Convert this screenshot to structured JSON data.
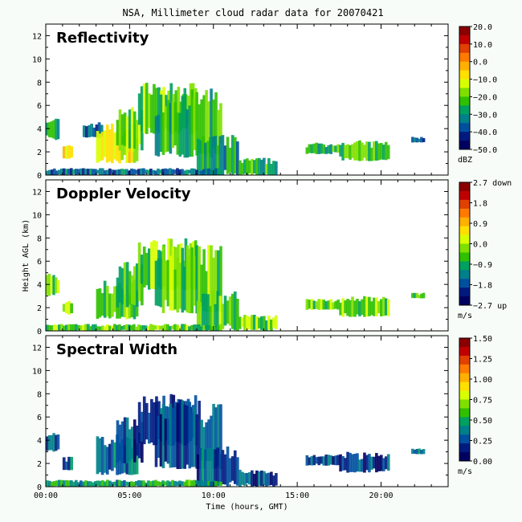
{
  "title": "NSA, Millimeter cloud radar data for 20070421",
  "chart_data": [
    {
      "type": "heatmap",
      "panel_title": "Reflectivity",
      "ylabel": "",
      "ylim": [
        0,
        13
      ],
      "yticks": [
        0,
        2,
        4,
        6,
        8,
        10,
        12
      ],
      "xlim": [
        0,
        24
      ],
      "colorbar": {
        "ticks": [
          "20.0",
          "10.0",
          "0.0",
          "−10.0",
          "−20.0",
          "−30.0",
          "−40.0",
          "−50.0"
        ],
        "unit": "dBZ",
        "colors": [
          "#8b0000",
          "#c00000",
          "#e04000",
          "#ff7a00",
          "#ffb000",
          "#ffe000",
          "#d8ff00",
          "#7fe000",
          "#30c000",
          "#00a060",
          "#00808a",
          "#0050a0",
          "#001a80",
          "#000060"
        ]
      },
      "cloud_regions": [
        {
          "x0": 0.0,
          "x1": 0.8,
          "y0": 3.0,
          "y1": 5.0,
          "v": 0.35
        },
        {
          "x0": 1.0,
          "x1": 1.6,
          "y0": 1.4,
          "y1": 2.6,
          "v": 0.55
        },
        {
          "x0": 2.2,
          "x1": 3.4,
          "y0": 3.2,
          "y1": 4.6,
          "v": 0.15
        },
        {
          "x0": 3.0,
          "x1": 5.5,
          "y0": 1.0,
          "y1": 4.5,
          "v": 0.55
        },
        {
          "x0": 4.2,
          "x1": 5.8,
          "y0": 2.0,
          "y1": 6.0,
          "v": 0.45
        },
        {
          "x0": 5.5,
          "x1": 9.0,
          "y0": 3.5,
          "y1": 8.0,
          "v": 0.4
        },
        {
          "x0": 6.5,
          "x1": 10.5,
          "y0": 1.5,
          "y1": 7.5,
          "v": 0.35
        },
        {
          "x0": 9.0,
          "x1": 11.5,
          "y0": 0.0,
          "y1": 3.5,
          "v": 0.3
        },
        {
          "x0": 11.5,
          "x1": 13.8,
          "y0": 0.0,
          "y1": 1.5,
          "v": 0.35
        },
        {
          "x0": 15.5,
          "x1": 17.5,
          "y0": 1.8,
          "y1": 2.8,
          "v": 0.35
        },
        {
          "x0": 17.5,
          "x1": 20.5,
          "y0": 1.2,
          "y1": 3.0,
          "v": 0.4
        },
        {
          "x0": 21.8,
          "x1": 22.6,
          "y0": 2.8,
          "y1": 3.3,
          "v": 0.2
        },
        {
          "x0": 0.0,
          "x1": 10.5,
          "y0": 0.0,
          "y1": 0.6,
          "v": 0.2
        }
      ]
    },
    {
      "type": "heatmap",
      "panel_title": "Doppler Velocity",
      "ylabel": "Height AGL (km)",
      "ylim": [
        0,
        13
      ],
      "yticks": [
        0,
        2,
        4,
        6,
        8,
        10,
        12
      ],
      "xlim": [
        0,
        24
      ],
      "colorbar": {
        "ticks": [
          "2.7 down",
          "1.8",
          "0.9",
          "0.0",
          "−0.9",
          "−1.8",
          "−2.7 up"
        ],
        "unit": "m/s",
        "colors": [
          "#8b0000",
          "#c00000",
          "#e04000",
          "#ff7a00",
          "#ffb000",
          "#ffe000",
          "#d8ff00",
          "#7fe000",
          "#30c000",
          "#00a060",
          "#00808a",
          "#0050a0",
          "#001a80",
          "#000060"
        ]
      },
      "cloud_regions": [
        {
          "x0": 0.0,
          "x1": 0.8,
          "y0": 3.0,
          "y1": 5.0,
          "v": 0.45
        },
        {
          "x0": 1.0,
          "x1": 1.6,
          "y0": 1.4,
          "y1": 2.6,
          "v": 0.45
        },
        {
          "x0": 3.0,
          "x1": 5.5,
          "y0": 1.0,
          "y1": 4.5,
          "v": 0.4
        },
        {
          "x0": 4.2,
          "x1": 5.8,
          "y0": 2.0,
          "y1": 6.0,
          "v": 0.42
        },
        {
          "x0": 5.5,
          "x1": 9.0,
          "y0": 3.5,
          "y1": 8.0,
          "v": 0.45
        },
        {
          "x0": 6.5,
          "x1": 10.5,
          "y0": 1.5,
          "y1": 7.5,
          "v": 0.42
        },
        {
          "x0": 9.0,
          "x1": 11.5,
          "y0": 0.0,
          "y1": 3.5,
          "v": 0.4
        },
        {
          "x0": 11.5,
          "x1": 13.8,
          "y0": 0.0,
          "y1": 1.5,
          "v": 0.42
        },
        {
          "x0": 15.5,
          "x1": 17.5,
          "y0": 1.8,
          "y1": 2.8,
          "v": 0.42
        },
        {
          "x0": 17.5,
          "x1": 20.5,
          "y0": 1.2,
          "y1": 3.0,
          "v": 0.42
        },
        {
          "x0": 21.8,
          "x1": 22.6,
          "y0": 2.8,
          "y1": 3.3,
          "v": 0.45
        },
        {
          "x0": 0.0,
          "x1": 10.5,
          "y0": 0.0,
          "y1": 0.6,
          "v": 0.4
        }
      ]
    },
    {
      "type": "heatmap",
      "panel_title": "Spectral Width",
      "ylabel": "",
      "ylim": [
        0,
        13
      ],
      "yticks": [
        0,
        2,
        4,
        6,
        8,
        10,
        12
      ],
      "xlim": [
        0,
        24
      ],
      "xlabel": "Time (hours, GMT)",
      "xticks": [
        {
          "v": 0,
          "label": "00:00"
        },
        {
          "v": 5,
          "label": "05:00"
        },
        {
          "v": 10,
          "label": "10:00"
        },
        {
          "v": 15,
          "label": "15:00"
        },
        {
          "v": 20,
          "label": "20:00"
        }
      ],
      "colorbar": {
        "ticks": [
          "1.50",
          "1.25",
          "1.00",
          "0.75",
          "0.50",
          "0.25",
          "0.00"
        ],
        "unit": "m/s",
        "colors": [
          "#8b0000",
          "#c00000",
          "#e04000",
          "#ff7a00",
          "#ffb000",
          "#ffe000",
          "#d8ff00",
          "#7fe000",
          "#30c000",
          "#00a060",
          "#00808a",
          "#0050a0",
          "#001a80",
          "#000060"
        ]
      },
      "cloud_regions": [
        {
          "x0": 0.0,
          "x1": 0.8,
          "y0": 3.0,
          "y1": 5.0,
          "v": 0.15
        },
        {
          "x0": 1.0,
          "x1": 1.6,
          "y0": 1.4,
          "y1": 2.6,
          "v": 0.2
        },
        {
          "x0": 3.0,
          "x1": 5.5,
          "y0": 1.0,
          "y1": 4.5,
          "v": 0.2
        },
        {
          "x0": 4.2,
          "x1": 5.8,
          "y0": 2.0,
          "y1": 6.0,
          "v": 0.12
        },
        {
          "x0": 5.5,
          "x1": 9.0,
          "y0": 3.5,
          "y1": 8.0,
          "v": 0.1
        },
        {
          "x0": 6.5,
          "x1": 10.5,
          "y0": 1.5,
          "y1": 7.5,
          "v": 0.12
        },
        {
          "x0": 9.0,
          "x1": 11.5,
          "y0": 0.0,
          "y1": 3.5,
          "v": 0.15
        },
        {
          "x0": 11.5,
          "x1": 13.8,
          "y0": 0.0,
          "y1": 1.5,
          "v": 0.15
        },
        {
          "x0": 15.5,
          "x1": 17.5,
          "y0": 1.8,
          "y1": 2.8,
          "v": 0.12
        },
        {
          "x0": 17.5,
          "x1": 20.5,
          "y0": 1.2,
          "y1": 3.0,
          "v": 0.12
        },
        {
          "x0": 21.8,
          "x1": 22.6,
          "y0": 2.8,
          "y1": 3.3,
          "v": 0.25
        },
        {
          "x0": 0.0,
          "x1": 10.5,
          "y0": 0.0,
          "y1": 0.6,
          "v": 0.3
        }
      ]
    }
  ]
}
